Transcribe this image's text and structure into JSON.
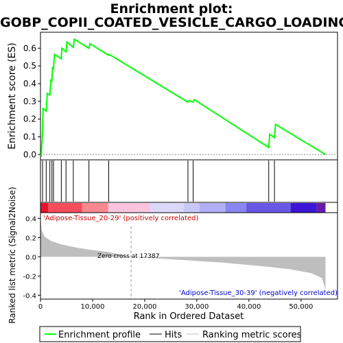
{
  "chart_data": {
    "type": "line",
    "title_line1": "Enrichment plot:",
    "title_line2": "GOBP_COPII_COATED_VESICLE_CARGO_LOADING",
    "es_panel": {
      "ylabel": "Enrichment score (ES)",
      "ylim": [
        -0.03,
        0.69
      ],
      "yticks": [
        0.0,
        0.1,
        0.2,
        0.3,
        0.4,
        0.5,
        0.6
      ],
      "ytick_labels": [
        "0.0",
        "0.1",
        "0.2",
        "0.3",
        "0.4",
        "0.5",
        "0.6"
      ],
      "line_color": "#00ff00",
      "es_points": [
        [
          0,
          0.0
        ],
        [
          150,
          -0.005
        ],
        [
          400,
          0.13
        ],
        [
          500,
          0.26
        ],
        [
          1100,
          0.245
        ],
        [
          1300,
          0.345
        ],
        [
          1800,
          0.335
        ],
        [
          2000,
          0.42
        ],
        [
          2200,
          0.415
        ],
        [
          2300,
          0.49
        ],
        [
          2500,
          0.485
        ],
        [
          2700,
          0.565
        ],
        [
          4000,
          0.54
        ],
        [
          4100,
          0.6
        ],
        [
          4900,
          0.58
        ],
        [
          5100,
          0.635
        ],
        [
          6300,
          0.605
        ],
        [
          6500,
          0.65
        ],
        [
          9300,
          0.6
        ],
        [
          9500,
          0.625
        ],
        [
          13100,
          0.56
        ],
        [
          13200,
          0.565
        ],
        [
          28300,
          0.295
        ],
        [
          28500,
          0.305
        ],
        [
          29300,
          0.295
        ],
        [
          29500,
          0.31
        ],
        [
          43800,
          0.04
        ],
        [
          44000,
          0.115
        ],
        [
          44900,
          0.095
        ],
        [
          45100,
          0.17
        ],
        [
          54700,
          0.0
        ]
      ]
    },
    "hits": [
      400,
      1100,
      1800,
      2200,
      2500,
      4000,
      4900,
      6300,
      9300,
      13100,
      28300,
      29300,
      43800,
      44900
    ],
    "color_bar": {
      "segments": [
        {
          "end": 1500,
          "color": "#e8112a"
        },
        {
          "end": 8000,
          "color": "#f54c5c"
        },
        {
          "end": 13000,
          "color": "#f7888f"
        },
        {
          "end": 21000,
          "color": "#fac4df"
        },
        {
          "end": 27500,
          "color": "#dcd8fa"
        },
        {
          "end": 30500,
          "color": "#c9c7f8"
        },
        {
          "end": 35500,
          "color": "#b0aef5"
        },
        {
          "end": 39500,
          "color": "#8a86ef"
        },
        {
          "end": 48000,
          "color": "#6858e6"
        },
        {
          "end": 53000,
          "color": "#3b16d6"
        },
        {
          "end": 54700,
          "color": "#6a1aa8"
        }
      ]
    },
    "metric_panel": {
      "ylabel": "Ranked list metric (Signal2Noise)",
      "ylim": [
        -0.44,
        0.46
      ],
      "yticks": [
        -0.4,
        -0.2,
        0.0,
        0.2,
        0.4
      ],
      "ytick_labels": [
        "-0.4",
        "-0.2",
        "0.0",
        "0.2",
        "0.4"
      ],
      "fill_color": "#bebebe",
      "metric_points": [
        [
          0,
          0.42
        ],
        [
          200,
          0.28
        ],
        [
          800,
          0.21
        ],
        [
          2000,
          0.165
        ],
        [
          4000,
          0.13
        ],
        [
          7000,
          0.095
        ],
        [
          10000,
          0.07
        ],
        [
          13000,
          0.05
        ],
        [
          17387,
          0.0
        ],
        [
          25000,
          -0.025
        ],
        [
          35000,
          -0.06
        ],
        [
          43000,
          -0.1
        ],
        [
          48000,
          -0.13
        ],
        [
          52000,
          -0.17
        ],
        [
          54000,
          -0.22
        ],
        [
          54700,
          -0.34
        ]
      ],
      "zero_cross_rank": 17387,
      "zero_cross_label": "Zero cross at 17387",
      "pos_label": "'Adipose-Tissue_20-29' (positively correlated)",
      "neg_label": "'Adipose-Tissue_30-39' (negatively correlated)"
    },
    "x_axis": {
      "xlabel": "Rank in Ordered Dataset",
      "xlim": [
        0,
        57000
      ],
      "xticks": [
        0,
        10000,
        20000,
        30000,
        40000,
        50000
      ],
      "xtick_labels": [
        "0",
        "10,000",
        "20,000",
        "30,000",
        "40,000",
        "50,000"
      ],
      "n_genes": 54700
    },
    "legend": {
      "placement": "bottom",
      "entries": [
        {
          "label": "Enrichment profile",
          "color": "#00ff00"
        },
        {
          "label": "Hits",
          "color": "#000000"
        },
        {
          "label": "Ranking metric scores",
          "color": "#bebebe"
        }
      ]
    }
  }
}
